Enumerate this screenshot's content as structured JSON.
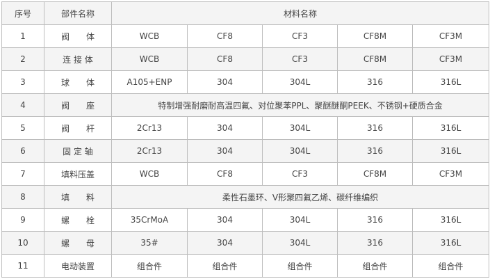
{
  "header": {
    "index": "序号",
    "part": "部件名称",
    "material": "材料名称"
  },
  "rows": [
    {
      "index": "1",
      "part": "阀　　体",
      "materials": [
        "WCB",
        "CF8",
        "CF3",
        "CF8M",
        "CF3M"
      ]
    },
    {
      "index": "2",
      "part": "连 接 体",
      "materials": [
        "WCB",
        "CF8",
        "CF3",
        "CF8M",
        "CF3M"
      ]
    },
    {
      "index": "3",
      "part": "球　　体",
      "materials": [
        "A105+ENP",
        "304",
        "304L",
        "316",
        "316L"
      ]
    },
    {
      "index": "4",
      "part": "阀　　座",
      "merged": "特制增强耐磨耐高温四氟、对位聚苯PPL、聚醚醚酮PEEK、不锈钢+硬质合金"
    },
    {
      "index": "5",
      "part": "阀　　杆",
      "materials": [
        "2Cr13",
        "304",
        "304L",
        "316",
        "316L"
      ]
    },
    {
      "index": "6",
      "part": "固 定 轴",
      "materials": [
        "2Cr13",
        "304",
        "304L",
        "316",
        "316L"
      ]
    },
    {
      "index": "7",
      "part": "填料压盖",
      "materials": [
        "WCB",
        "CF8",
        "CF3",
        "CF8M",
        "CF3M"
      ]
    },
    {
      "index": "8",
      "part": "填　　料",
      "merged": "柔性石墨环、V形聚四氟乙烯、碳纤维编织"
    },
    {
      "index": "9",
      "part": "螺　　栓",
      "materials": [
        "35CrMoA",
        "304",
        "304L",
        "316",
        "316L"
      ]
    },
    {
      "index": "10",
      "part": "螺　　母",
      "materials": [
        "35#",
        "304",
        "304L",
        "316",
        "316L"
      ]
    },
    {
      "index": "11",
      "part": "电动装置",
      "materials": [
        "组合件",
        "组合件",
        "组合件",
        "组合件",
        "组合件"
      ]
    }
  ]
}
